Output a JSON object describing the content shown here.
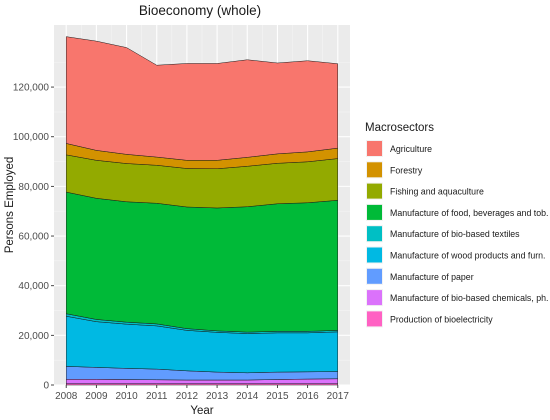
{
  "chart_data": {
    "type": "area",
    "stacked": true,
    "title": "Bioeconomy (whole)",
    "xlabel": "Year",
    "ylabel": "Persons Employed",
    "x": [
      2008,
      2009,
      2010,
      2011,
      2012,
      2013,
      2014,
      2015,
      2016,
      2017
    ],
    "xlim": [
      2008,
      2017
    ],
    "ylim": [
      0,
      145000
    ],
    "yticks": [
      0,
      20000,
      40000,
      60000,
      80000,
      100000,
      120000
    ],
    "ytick_labels": [
      "0",
      "20,000",
      "40,000",
      "60,000",
      "80,000",
      "100,000",
      "120,000"
    ],
    "grid": true,
    "legend_position": "right",
    "legend_title": "Macrosectors",
    "series": [
      {
        "name": "Production of bioelectricity",
        "color": "#FF61C3",
        "values": [
          500,
          500,
          500,
          500,
          500,
          500,
          500,
          500,
          500,
          500
        ]
      },
      {
        "name": "Manufacture of bio-based chemicals, ph.",
        "color": "#DB72FB",
        "values": [
          1800,
          1800,
          1700,
          1600,
          1500,
          1500,
          1500,
          1700,
          1900,
          2000
        ]
      },
      {
        "name": "Manufacture of paper",
        "color": "#619CFF",
        "values": [
          5200,
          4800,
          4500,
          4300,
          3700,
          3200,
          2900,
          3000,
          2900,
          2900
        ]
      },
      {
        "name": "Manufacture of wood products and furn.",
        "color": "#00B9E3",
        "values": [
          20200,
          18400,
          17800,
          17400,
          16300,
          16000,
          15800,
          15800,
          15700,
          16000
        ]
      },
      {
        "name": "Manufacture of bio-based textiles",
        "color": "#00BFC4",
        "values": [
          1000,
          900,
          800,
          800,
          700,
          600,
          600,
          600,
          600,
          600
        ]
      },
      {
        "name": "Manufacture of food, beverages and tob.",
        "color": "#00BA38",
        "values": [
          49000,
          48800,
          48500,
          48600,
          49000,
          49500,
          50500,
          51400,
          51800,
          52400
        ]
      },
      {
        "name": "Fishing and aquaculture",
        "color": "#93AA00",
        "values": [
          15000,
          15300,
          15400,
          15300,
          15500,
          15800,
          16300,
          16300,
          16500,
          16800
        ]
      },
      {
        "name": "Forestry",
        "color": "#D39200",
        "values": [
          4600,
          4000,
          3700,
          3300,
          3300,
          3400,
          3600,
          3800,
          4000,
          4200
        ]
      },
      {
        "name": "Agriculture",
        "color": "#F8766D",
        "values": [
          43000,
          44000,
          43000,
          37000,
          39000,
          39000,
          39300,
          36600,
          36700,
          34000
        ]
      }
    ]
  }
}
